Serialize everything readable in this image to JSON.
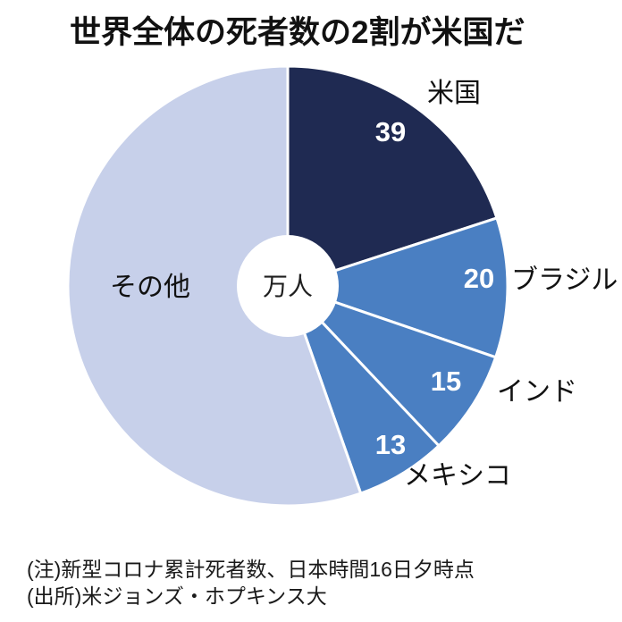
{
  "title": "世界全体の死者数の2割が米国だ",
  "notes": [
    "(注)新型コロナ累計死者数、日本時間16日夕時点",
    "(出所)米ジョンズ・ホプキンス大"
  ],
  "chart_data": {
    "type": "pie",
    "donut": true,
    "title": "世界全体の死者数の2割が米国だ",
    "center_label": "万人",
    "unit": "万人",
    "start_angle_deg": 0,
    "direction": "clockwise",
    "legend": "none",
    "value_text_color": "#ffffff",
    "label_text_color": "#111111",
    "slices": [
      {
        "label": "米国",
        "value": 39,
        "color": "#1f2a52",
        "value_shown": true
      },
      {
        "label": "ブラジル",
        "value": 20,
        "color": "#4a7fc2",
        "value_shown": true
      },
      {
        "label": "インド",
        "value": 15,
        "color": "#4a7fc2",
        "value_shown": true
      },
      {
        "label": "メキシコ",
        "value": 13,
        "color": "#4a7fc2",
        "value_shown": true
      },
      {
        "label": "その他",
        "value": 108,
        "color": "#c7d0ea",
        "value_shown": false
      }
    ]
  }
}
